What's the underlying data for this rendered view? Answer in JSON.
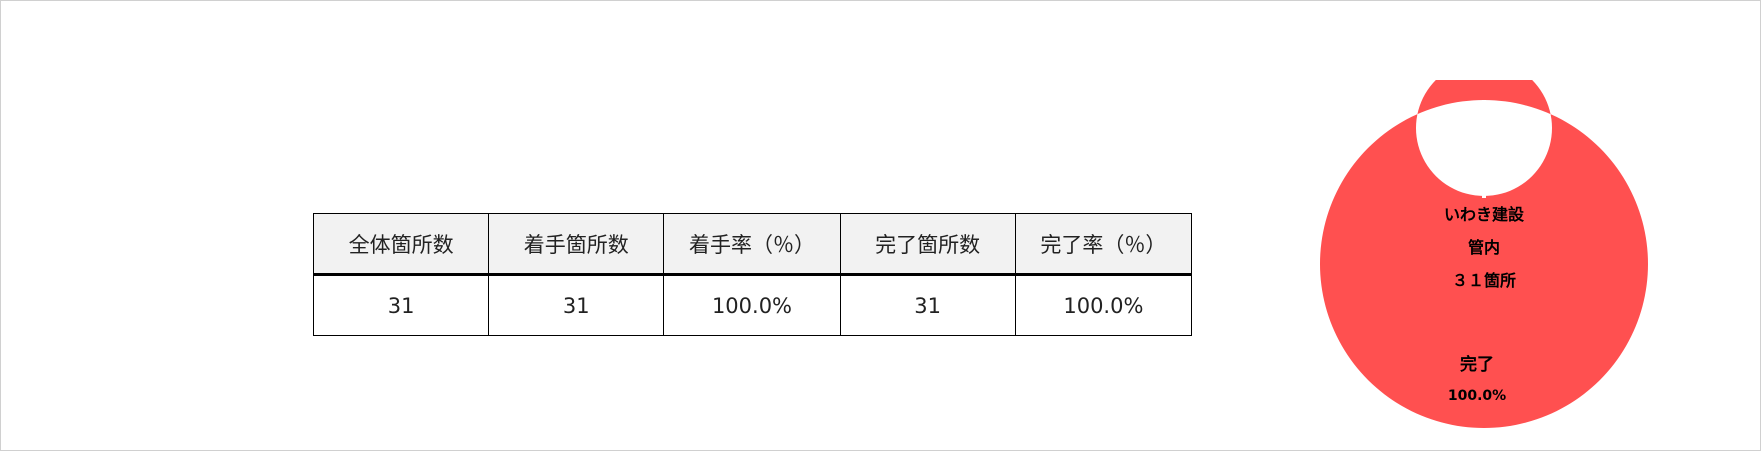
{
  "table": {
    "headers": [
      "全体箇所数",
      "着手箇所数",
      "着手率（％）",
      "完了箇所数",
      "完了率（％）"
    ],
    "row": [
      "31",
      "31",
      "100.0%",
      "31",
      "100.0%"
    ]
  },
  "chart_data": {
    "type": "pie",
    "variant": "donut",
    "center_label": [
      "いわき建設",
      "管内",
      "３１箇所"
    ],
    "slices": [
      {
        "label": "完了",
        "value": 100.0,
        "value_label": "100.0%",
        "color": "#ff5050"
      }
    ]
  }
}
